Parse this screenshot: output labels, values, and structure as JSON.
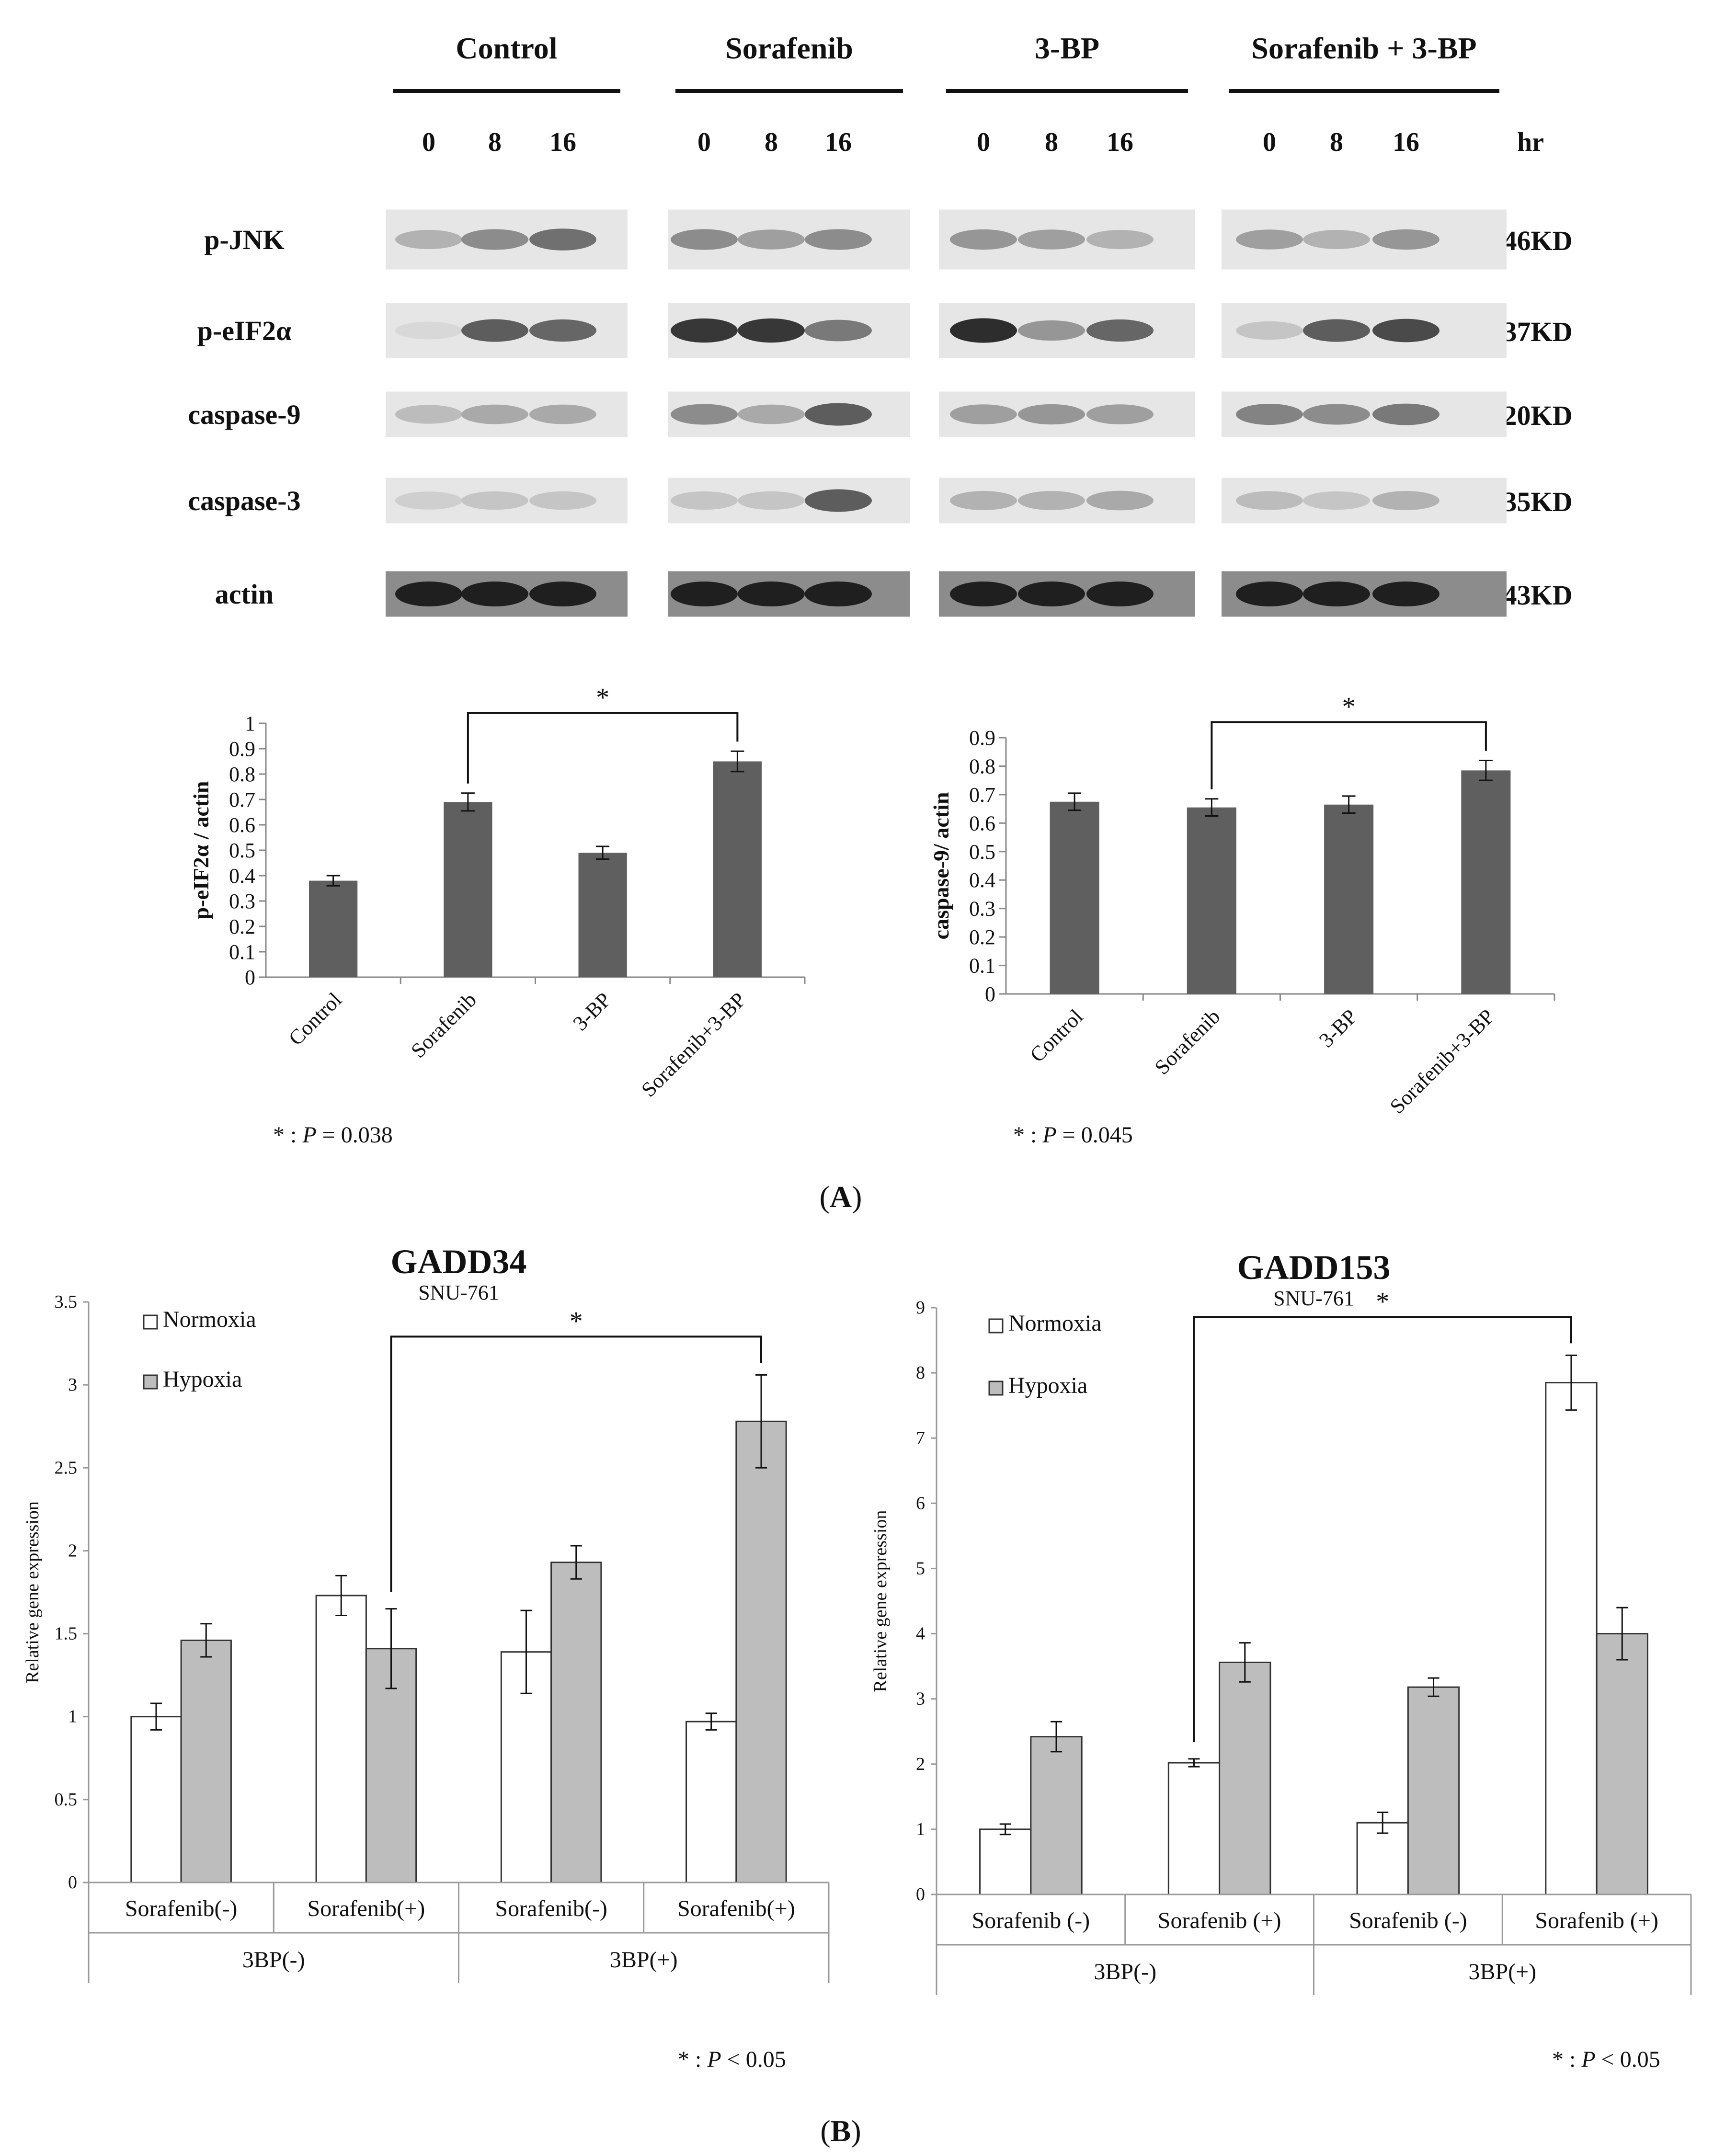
{
  "panel_a": {
    "label_letter": "A",
    "blot": {
      "groups": [
        "Control",
        "Sorafenib",
        "3-BP",
        "Sorafenib + 3-BP"
      ],
      "timepoints": [
        "0",
        "8",
        "16"
      ],
      "time_unit": "hr",
      "rows": [
        {
          "name": "p-JNK",
          "size": "46KD",
          "intensity": [
            [
              0.25,
              0.45,
              0.6
            ],
            [
              0.45,
              0.35,
              0.45
            ],
            [
              0.4,
              0.35,
              0.25
            ],
            [
              0.35,
              0.25,
              0.4
            ]
          ]
        },
        {
          "name": "p-eIF2α",
          "size": "37KD",
          "intensity": [
            [
              0.05,
              0.7,
              0.65
            ],
            [
              0.9,
              0.9,
              0.55
            ],
            [
              0.95,
              0.4,
              0.65
            ],
            [
              0.15,
              0.7,
              0.8
            ]
          ]
        },
        {
          "name": "caspase-9",
          "size": "20KD",
          "intensity": [
            [
              0.2,
              0.3,
              0.3
            ],
            [
              0.45,
              0.3,
              0.7
            ],
            [
              0.35,
              0.4,
              0.35
            ],
            [
              0.5,
              0.45,
              0.55
            ]
          ]
        },
        {
          "name": "caspase-3",
          "size": "35KD",
          "intensity": [
            [
              0.1,
              0.15,
              0.15
            ],
            [
              0.15,
              0.15,
              0.7
            ],
            [
              0.25,
              0.25,
              0.3
            ],
            [
              0.2,
              0.15,
              0.25
            ]
          ]
        },
        {
          "name": "actin",
          "size": "43KD",
          "intensity": [
            [
              1,
              1,
              1
            ],
            [
              1,
              1,
              1
            ],
            [
              1,
              1,
              1
            ],
            [
              1,
              1,
              1
            ]
          ]
        }
      ]
    },
    "footnote_left": {
      "prefix": "* : ",
      "p": "P",
      "suffix": " = 0.038"
    },
    "footnote_right": {
      "prefix": "* : ",
      "p": "P",
      "suffix": " = 0.045"
    }
  },
  "panel_b": {
    "label_letter": "B",
    "footnote": {
      "prefix": "* : ",
      "p": "P",
      "suffix": " < 0.05"
    }
  },
  "chart_data": [
    {
      "type": "bar",
      "categories": [
        "Control",
        "Sorafenib",
        "3-BP",
        "Sorafenib+3-BP"
      ],
      "values": [
        0.38,
        0.69,
        0.49,
        0.85
      ],
      "errors": [
        0.02,
        0.035,
        0.025,
        0.04
      ],
      "ylabel": "p-eIF2α / actin",
      "ylim": [
        0,
        1
      ],
      "yticks": [
        "0",
        "0.1",
        "0.2",
        "0.3",
        "0.4",
        "0.5",
        "0.6",
        "0.7",
        "0.8",
        "0.9",
        "1"
      ],
      "significance": {
        "from": "Sorafenib",
        "to": "Sorafenib+3-BP",
        "mark": "*"
      },
      "color": "#5f5f5f"
    },
    {
      "type": "bar",
      "categories": [
        "Control",
        "Sorafenib",
        "3-BP",
        "Sorafenib+3-BP"
      ],
      "values": [
        0.675,
        0.655,
        0.665,
        0.785
      ],
      "errors": [
        0.03,
        0.03,
        0.03,
        0.035
      ],
      "ylabel": "caspase-9/ actin",
      "ylim": [
        0,
        0.9
      ],
      "yticks": [
        "0",
        "0.1",
        "0.2",
        "0.3",
        "0.4",
        "0.5",
        "0.6",
        "0.7",
        "0.8",
        "0.9"
      ],
      "significance": {
        "from": "Sorafenib",
        "to": "Sorafenib+3-BP",
        "mark": "*"
      },
      "color": "#5f5f5f"
    },
    {
      "type": "bar",
      "title": "GADD34",
      "subtitle": "SNU-761",
      "categories": [
        "Sorafenib(-)",
        "Sorafenib(+)",
        "Sorafenib(-)",
        "Sorafenib(+)"
      ],
      "groups": [
        {
          "label": "3BP(-)",
          "span": 2
        },
        {
          "label": "3BP(+)",
          "span": 2
        }
      ],
      "ylabel": "Relative gene expression",
      "ylim": [
        0,
        3.5
      ],
      "yticks": [
        "0",
        "0.5",
        "1",
        "1.5",
        "2",
        "2.5",
        "3",
        "3.5"
      ],
      "series": [
        {
          "name": "Normoxia",
          "values": [
            1.0,
            1.73,
            1.39,
            0.97
          ],
          "errors": [
            0.08,
            0.12,
            0.25,
            0.05
          ],
          "color": "#ffffff"
        },
        {
          "name": "Hypoxia",
          "values": [
            1.46,
            1.41,
            1.93,
            2.78
          ],
          "errors": [
            0.1,
            0.24,
            0.1,
            0.28
          ],
          "color": "#bdbdbd"
        }
      ],
      "significance": {
        "from_bar": [
          1,
          1
        ],
        "to_bar": [
          3,
          1
        ],
        "mark": "*"
      }
    },
    {
      "type": "bar",
      "title": "GADD153",
      "subtitle": "SNU-761",
      "categories": [
        "Sorafenib (-)",
        "Sorafenib (+)",
        "Sorafenib (-)",
        "Sorafenib (+)"
      ],
      "groups": [
        {
          "label": "3BP(-)",
          "span": 2
        },
        {
          "label": "3BP(+)",
          "span": 2
        }
      ],
      "ylabel": "Relative gene expression",
      "ylim": [
        0,
        9
      ],
      "yticks": [
        "0",
        "1",
        "2",
        "3",
        "4",
        "5",
        "6",
        "7",
        "8",
        "9"
      ],
      "series": [
        {
          "name": "Normoxia",
          "values": [
            1.0,
            2.02,
            1.1,
            7.85
          ],
          "errors": [
            0.08,
            0.06,
            0.16,
            0.42
          ],
          "color": "#ffffff"
        },
        {
          "name": "Hypoxia",
          "values": [
            2.42,
            3.56,
            3.18,
            4.0
          ],
          "errors": [
            0.23,
            0.3,
            0.14,
            0.4
          ],
          "color": "#bdbdbd"
        }
      ],
      "significance": {
        "from_bar": [
          1,
          0
        ],
        "to_bar": [
          3,
          0
        ],
        "mark": "*"
      }
    }
  ]
}
